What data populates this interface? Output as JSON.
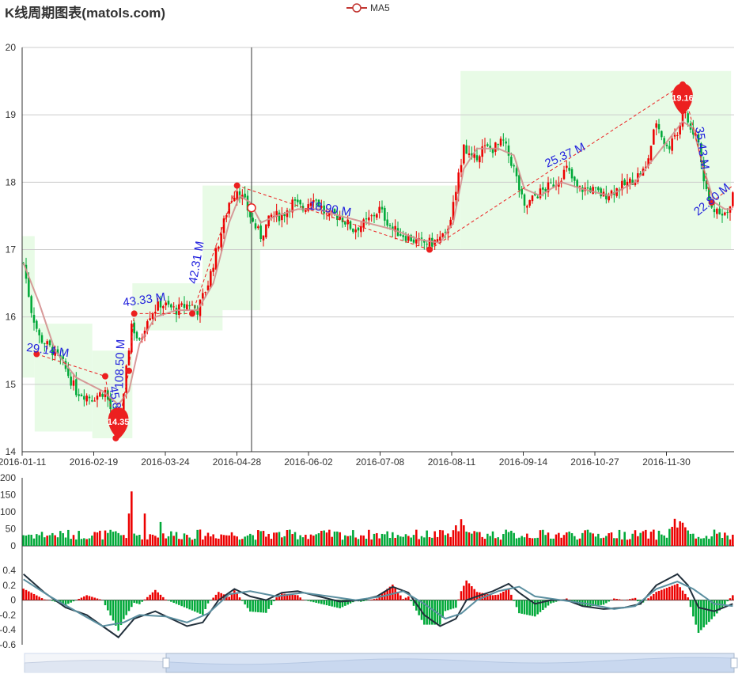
{
  "title": "K线周期图表(matols.com)",
  "legend": {
    "label": "MA5",
    "color": "#c23531"
  },
  "colors": {
    "up": "#ec0000",
    "down": "#00a838",
    "ma5": "#d48f8f",
    "grid": "#cccccc",
    "shade": "#e8fbe6",
    "macd_dif": "#22303c",
    "macd_dea": "#5b8fa0",
    "pin": "#ec2020",
    "label": "#2222dd"
  },
  "chart_data": {
    "type": "candlestick",
    "title": "K线周期图表(matols.com)",
    "x_ticks": [
      "2016-01-11",
      "2016-02-19",
      "2016-03-24",
      "2016-04-28",
      "2016-06-02",
      "2016-07-08",
      "2016-08-11",
      "2016-09-14",
      "2016-10-27",
      "2016-11-30"
    ],
    "price": {
      "ylim": [
        14,
        20
      ],
      "y_ticks": [
        "14",
        "15",
        "16",
        "17",
        "18",
        "19",
        "20"
      ],
      "anchors": [
        [
          0,
          16.8
        ],
        [
          3,
          16.1
        ],
        [
          6,
          15.7
        ],
        [
          11,
          15.5
        ],
        [
          15,
          15.3
        ],
        [
          20,
          14.9
        ],
        [
          26,
          14.8
        ],
        [
          31,
          14.9
        ],
        [
          34,
          14.5
        ],
        [
          37,
          14.4
        ],
        [
          39,
          15.2
        ],
        [
          41,
          15.9
        ],
        [
          44,
          15.6
        ],
        [
          47,
          16.0
        ],
        [
          52,
          16.2
        ],
        [
          58,
          16.1
        ],
        [
          63,
          16.2
        ],
        [
          66,
          16.1
        ],
        [
          70,
          16.5
        ],
        [
          74,
          17.1
        ],
        [
          78,
          17.7
        ],
        [
          81,
          17.9
        ],
        [
          84,
          17.7
        ],
        [
          87,
          17.4
        ],
        [
          90,
          17.2
        ],
        [
          94,
          17.5
        ],
        [
          98,
          17.5
        ],
        [
          102,
          17.7
        ],
        [
          106,
          17.6
        ],
        [
          110,
          17.8
        ],
        [
          115,
          17.5
        ],
        [
          120,
          17.5
        ],
        [
          125,
          17.3
        ],
        [
          130,
          17.4
        ],
        [
          135,
          17.6
        ],
        [
          140,
          17.3
        ],
        [
          145,
          17.2
        ],
        [
          150,
          17.1
        ],
        [
          155,
          17.1
        ],
        [
          160,
          17.2
        ],
        [
          164,
          17.8
        ],
        [
          167,
          18.6
        ],
        [
          170,
          18.3
        ],
        [
          174,
          18.5
        ],
        [
          178,
          18.5
        ],
        [
          182,
          18.6
        ],
        [
          186,
          18.2
        ],
        [
          190,
          17.6
        ],
        [
          194,
          17.8
        ],
        [
          198,
          17.9
        ],
        [
          202,
          18.0
        ],
        [
          206,
          18.2
        ],
        [
          210,
          17.9
        ],
        [
          215,
          17.9
        ],
        [
          220,
          17.8
        ],
        [
          225,
          17.9
        ],
        [
          230,
          18.0
        ],
        [
          236,
          18.2
        ],
        [
          240,
          18.9
        ],
        [
          244,
          18.5
        ],
        [
          248,
          18.7
        ],
        [
          250,
          19.1
        ],
        [
          253,
          18.8
        ],
        [
          256,
          18.6
        ],
        [
          258,
          18.0
        ],
        [
          261,
          17.6
        ],
        [
          264,
          17.6
        ],
        [
          267,
          17.5
        ],
        [
          269,
          17.8
        ]
      ],
      "ma5": [
        [
          0,
          16.8
        ],
        [
          6,
          16.2
        ],
        [
          12,
          15.5
        ],
        [
          20,
          15.1
        ],
        [
          30,
          14.9
        ],
        [
          36,
          14.7
        ],
        [
          40,
          14.9
        ],
        [
          44,
          15.6
        ],
        [
          50,
          16.0
        ],
        [
          58,
          16.1
        ],
        [
          66,
          16.1
        ],
        [
          72,
          16.5
        ],
        [
          78,
          17.4
        ],
        [
          82,
          17.8
        ],
        [
          86,
          17.7
        ],
        [
          90,
          17.4
        ],
        [
          96,
          17.5
        ],
        [
          104,
          17.6
        ],
        [
          112,
          17.6
        ],
        [
          120,
          17.5
        ],
        [
          130,
          17.4
        ],
        [
          140,
          17.3
        ],
        [
          150,
          17.15
        ],
        [
          158,
          17.1
        ],
        [
          163,
          17.4
        ],
        [
          167,
          18.2
        ],
        [
          172,
          18.5
        ],
        [
          180,
          18.5
        ],
        [
          186,
          18.4
        ],
        [
          190,
          17.9
        ],
        [
          196,
          17.8
        ],
        [
          204,
          18.0
        ],
        [
          212,
          17.9
        ],
        [
          222,
          17.8
        ],
        [
          232,
          18.0
        ],
        [
          238,
          18.3
        ],
        [
          244,
          18.6
        ],
        [
          250,
          18.9
        ],
        [
          254,
          18.8
        ],
        [
          258,
          18.2
        ],
        [
          262,
          17.7
        ],
        [
          266,
          17.6
        ],
        [
          269,
          17.6
        ]
      ]
    },
    "volume": {
      "ylim": [
        0,
        200
      ],
      "y_ticks": [
        "0",
        "50",
        "100",
        "150",
        "200"
      ]
    },
    "macd": {
      "ylim": [
        -0.6,
        0.4
      ],
      "y_ticks": [
        "-0.6",
        "-0.4",
        "-0.2",
        "0",
        "0.2",
        "0.4"
      ],
      "dif": [
        [
          0,
          0.35
        ],
        [
          8,
          0.1
        ],
        [
          16,
          -0.1
        ],
        [
          24,
          -0.2
        ],
        [
          30,
          -0.35
        ],
        [
          36,
          -0.5
        ],
        [
          42,
          -0.25
        ],
        [
          50,
          -0.15
        ],
        [
          56,
          -0.25
        ],
        [
          62,
          -0.35
        ],
        [
          68,
          -0.3
        ],
        [
          74,
          0.0
        ],
        [
          80,
          0.15
        ],
        [
          86,
          0.05
        ],
        [
          92,
          0.0
        ],
        [
          98,
          0.1
        ],
        [
          104,
          0.12
        ],
        [
          112,
          0.05
        ],
        [
          120,
          -0.02
        ],
        [
          128,
          0.0
        ],
        [
          134,
          0.05
        ],
        [
          140,
          0.18
        ],
        [
          146,
          0.1
        ],
        [
          152,
          -0.2
        ],
        [
          158,
          -0.35
        ],
        [
          164,
          -0.25
        ],
        [
          168,
          0.0
        ],
        [
          172,
          0.05
        ],
        [
          178,
          0.12
        ],
        [
          184,
          0.22
        ],
        [
          188,
          0.1
        ],
        [
          194,
          -0.05
        ],
        [
          200,
          0.0
        ],
        [
          206,
          0.0
        ],
        [
          212,
          -0.08
        ],
        [
          220,
          -0.12
        ],
        [
          228,
          -0.1
        ],
        [
          234,
          -0.05
        ],
        [
          240,
          0.2
        ],
        [
          248,
          0.35
        ],
        [
          252,
          0.2
        ],
        [
          256,
          -0.1
        ],
        [
          262,
          -0.15
        ],
        [
          269,
          -0.05
        ]
      ],
      "dea": [
        [
          0,
          0.28
        ],
        [
          10,
          0.05
        ],
        [
          20,
          -0.15
        ],
        [
          30,
          -0.35
        ],
        [
          38,
          -0.3
        ],
        [
          44,
          -0.2
        ],
        [
          54,
          -0.22
        ],
        [
          62,
          -0.3
        ],
        [
          70,
          -0.18
        ],
        [
          78,
          0.08
        ],
        [
          86,
          0.12
        ],
        [
          96,
          0.05
        ],
        [
          106,
          0.1
        ],
        [
          116,
          0.05
        ],
        [
          126,
          0.0
        ],
        [
          136,
          0.05
        ],
        [
          144,
          0.12
        ],
        [
          152,
          -0.05
        ],
        [
          160,
          -0.25
        ],
        [
          166,
          -0.18
        ],
        [
          172,
          0.0
        ],
        [
          180,
          0.12
        ],
        [
          188,
          0.18
        ],
        [
          194,
          0.05
        ],
        [
          204,
          0.0
        ],
        [
          214,
          -0.05
        ],
        [
          224,
          -0.12
        ],
        [
          232,
          -0.08
        ],
        [
          240,
          0.15
        ],
        [
          248,
          0.25
        ],
        [
          254,
          0.15
        ],
        [
          262,
          -0.05
        ],
        [
          269,
          -0.08
        ]
      ]
    },
    "annotations": {
      "labels": [
        {
          "text": "29.14 M",
          "i": 9,
          "y": 15.45,
          "angle": 8
        },
        {
          "text": "45.86 M",
          "i": 34,
          "y": 14.65,
          "angle": 80
        },
        {
          "text": "108.50 M",
          "i": 38,
          "y": 15.3,
          "angle": -88
        },
        {
          "text": "43.33 M",
          "i": 46,
          "y": 16.2,
          "angle": -8
        },
        {
          "text": "42.31 M",
          "i": 67,
          "y": 16.8,
          "angle": -80
        },
        {
          "text": "18.90 M",
          "i": 116,
          "y": 17.55,
          "angle": 10
        },
        {
          "text": "25.37 M",
          "i": 206,
          "y": 18.35,
          "angle": -25
        },
        {
          "text": "35.43 M",
          "i": 256,
          "y": 18.5,
          "angle": 82
        },
        {
          "text": "22.80 M",
          "i": 262,
          "y": 17.7,
          "angle": -40
        }
      ],
      "pins": [
        {
          "text": "14.35",
          "i": 36,
          "y": 14.35
        },
        {
          "text": "19.16",
          "i": 250,
          "y": 19.16
        }
      ]
    }
  }
}
